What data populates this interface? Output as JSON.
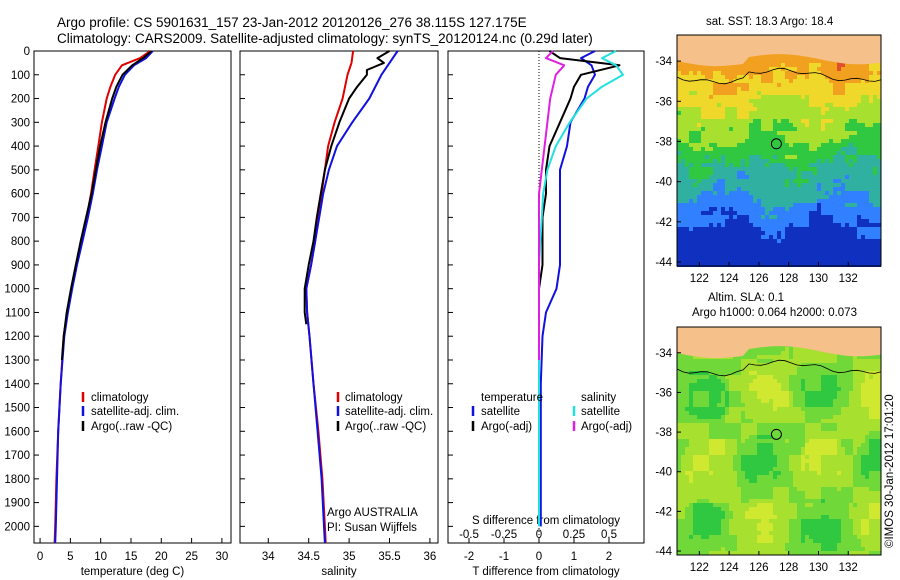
{
  "header": {
    "line1": "Argo profile: CS 5901631_157 23-Jan-2012 20120126_276 38.115S 127.175E",
    "line2": "Climatology: CARS2009. Satellite-adjusted climatology: synTS_20120124.nc (0.29d later)"
  },
  "credits": {
    "program": "Argo AUSTRALIA",
    "pi": "PI: Susan Wijffels",
    "imos": "©IMOS 30-Jan-2012 17:01:20"
  },
  "colors": {
    "climatology": "#e00000",
    "satellite": "#1010e0",
    "argo": "#000000",
    "cyan": "#20e0e0",
    "magenta": "#e020e0"
  },
  "chart_data": [
    {
      "type": "line",
      "title": "",
      "xlabel": "temperature (deg C)",
      "ylabel": "",
      "xlim": [
        -1,
        31.5
      ],
      "ylim": [
        2070,
        0
      ],
      "x_ticks": [
        0,
        5,
        10,
        15,
        20,
        25,
        30
      ],
      "y_ticks": [
        0,
        100,
        200,
        300,
        400,
        500,
        600,
        700,
        800,
        900,
        1000,
        1100,
        1200,
        1300,
        1400,
        1500,
        1600,
        1700,
        1800,
        1900,
        2000
      ],
      "legend": [
        "climatology",
        "satellite-adj. clim.",
        "Argo(..raw -QC)"
      ],
      "series": [
        {
          "name": "climatology",
          "color": "#e00000",
          "depth": [
            0,
            30,
            60,
            100,
            150,
            200,
            300,
            400,
            500,
            600,
            700,
            800,
            900,
            1000,
            1100,
            1200,
            1400,
            1600,
            1800,
            2000,
            2070
          ],
          "values": [
            18.2,
            16.5,
            13.5,
            12.4,
            11.6,
            11.0,
            10.2,
            9.6,
            9.0,
            8.4,
            7.7,
            6.9,
            6.0,
            5.2,
            4.5,
            3.9,
            3.4,
            3.0,
            2.7,
            2.5,
            2.4
          ]
        },
        {
          "name": "satellite-adj. clim.",
          "color": "#1010e0",
          "depth": [
            0,
            30,
            60,
            100,
            150,
            200,
            300,
            400,
            500,
            600,
            700,
            800,
            900,
            1000,
            1100,
            1200,
            1400,
            1600,
            1800,
            2000,
            2070
          ],
          "values": [
            18.6,
            17.5,
            15.5,
            14.0,
            13.0,
            12.3,
            11.0,
            10.2,
            9.4,
            8.7,
            7.9,
            7.0,
            6.1,
            5.3,
            4.6,
            4.0,
            3.4,
            3.0,
            2.8,
            2.6,
            2.5
          ]
        },
        {
          "name": "Argo(..raw -QC)",
          "color": "#000000",
          "depth": [
            0,
            30,
            60,
            100,
            150,
            200,
            300,
            400,
            500,
            600,
            700,
            800,
            900,
            1000,
            1100,
            1200,
            1300
          ],
          "values": [
            18.4,
            17.0,
            15.2,
            13.6,
            12.6,
            11.9,
            10.8,
            9.9,
            9.2,
            8.5,
            7.6,
            6.7,
            5.9,
            5.1,
            4.4,
            3.9,
            3.6
          ]
        }
      ]
    },
    {
      "type": "line",
      "title": "",
      "xlabel": "salinity",
      "ylabel": "",
      "xlim": [
        33.65,
        36.1
      ],
      "ylim": [
        2070,
        0
      ],
      "x_ticks": [
        34,
        34.5,
        35,
        35.5,
        36
      ],
      "legend": [
        "climatology",
        "satellite-adj. clim.",
        "Argo(..raw -QC)"
      ],
      "series": [
        {
          "name": "climatology",
          "color": "#e00000",
          "depth": [
            0,
            50,
            100,
            200,
            300,
            400,
            500,
            600,
            700,
            800,
            900,
            1000,
            1100,
            1200,
            1400,
            1600,
            1800,
            2000,
            2070
          ],
          "values": [
            35.05,
            35.03,
            34.98,
            34.92,
            34.82,
            34.74,
            34.7,
            34.66,
            34.62,
            34.58,
            34.53,
            34.47,
            34.48,
            34.51,
            34.56,
            34.62,
            34.67,
            34.7,
            34.71
          ]
        },
        {
          "name": "satellite-adj. clim.",
          "color": "#1010e0",
          "depth": [
            0,
            50,
            100,
            200,
            300,
            400,
            500,
            600,
            700,
            800,
            900,
            1000,
            1100,
            1200,
            1400,
            1600,
            1800,
            2000,
            2070
          ],
          "values": [
            35.6,
            35.5,
            35.4,
            35.25,
            35.04,
            34.85,
            34.75,
            34.68,
            34.63,
            34.58,
            34.53,
            34.47,
            34.48,
            34.51,
            34.56,
            34.61,
            34.66,
            34.69,
            34.7
          ]
        },
        {
          "name": "Argo(..raw -QC)",
          "color": "#000000",
          "depth": [
            0,
            30,
            50,
            80,
            100,
            150,
            200,
            300,
            400,
            500,
            600,
            700,
            800,
            900,
            1000,
            1100,
            1150
          ],
          "values": [
            35.5,
            35.35,
            35.43,
            35.22,
            35.22,
            35.1,
            35.0,
            34.88,
            34.78,
            34.7,
            34.65,
            34.6,
            34.56,
            34.5,
            34.45,
            34.45,
            34.47
          ]
        }
      ]
    },
    {
      "type": "line",
      "title": "",
      "xlabel": "T difference from climatology",
      "xlabel2": "S difference from climatology",
      "ylabel": "",
      "xlim": [
        -2.6,
        3.0
      ],
      "x2lim": [
        -0.65,
        0.75
      ],
      "ylim": [
        2070,
        0
      ],
      "x_ticks": [
        -2,
        -1,
        0,
        1,
        2
      ],
      "x2_ticks": [
        -0.5,
        -0.25,
        0,
        0.25,
        0.5
      ],
      "x2_tick_labels": [
        "-0.5",
        "-0.25",
        "0",
        "0.25",
        "0.5"
      ],
      "legend_temperature_title": "temperature",
      "legend_salinity_title": "salinity",
      "legend": [
        "satellite",
        "Argo(-adj)",
        "satellite",
        "Argo(-adj)"
      ],
      "series": [
        {
          "name": "satellite",
          "group": "temperature",
          "color": "#1010e0",
          "depth": [
            0,
            30,
            60,
            100,
            150,
            200,
            300,
            400,
            500,
            600,
            700,
            800,
            900,
            1000,
            1100,
            1200,
            1400,
            1600,
            1800,
            2000
          ],
          "values": [
            1.6,
            1.2,
            1.5,
            1.6,
            1.4,
            1.3,
            0.9,
            0.8,
            0.6,
            0.6,
            0.6,
            0.6,
            0.6,
            0.5,
            0.2,
            0.1,
            0.05,
            0.05,
            0.05,
            0.05
          ]
        },
        {
          "name": "Argo(-adj)",
          "group": "temperature",
          "color": "#000000",
          "depth": [
            0,
            30,
            60,
            100,
            150,
            200,
            300,
            400,
            500,
            600,
            700,
            800,
            900,
            1000,
            1100,
            1200,
            1300
          ],
          "values": [
            0.3,
            0.6,
            2.3,
            1.2,
            1.0,
            0.9,
            0.6,
            0.3,
            0.2,
            0.2,
            0.1,
            0.1,
            0.1,
            0.0,
            0.0,
            0.0,
            0.0
          ]
        },
        {
          "name": "satellite",
          "group": "salinity",
          "color": "#20e0e0",
          "depth": [
            0,
            30,
            60,
            100,
            150,
            200,
            300,
            400,
            500,
            600,
            700,
            800,
            900,
            1000,
            1100,
            1200,
            1400,
            1600,
            1800,
            2000
          ],
          "values": [
            0.55,
            0.45,
            0.55,
            0.6,
            0.45,
            0.34,
            0.22,
            0.12,
            0.06,
            0.03,
            0.02,
            0.01,
            0.0,
            0.0,
            0.0,
            0.0,
            0.0,
            0.0,
            0.0,
            0.0
          ]
        },
        {
          "name": "Argo(-adj)",
          "group": "salinity",
          "color": "#e020e0",
          "depth": [
            0,
            30,
            60,
            100,
            150,
            200,
            300,
            400,
            500,
            600,
            700,
            800,
            900,
            1000,
            1100,
            1200,
            1300
          ],
          "values": [
            0.1,
            0.05,
            0.18,
            0.12,
            0.1,
            0.08,
            0.06,
            0.04,
            0.02,
            0.0,
            0.0,
            0.0,
            0.0,
            0.0,
            0.0,
            0.0,
            0.0
          ]
        }
      ]
    },
    {
      "type": "heatmap",
      "title": "sat. SST: 18.3 Argo: 18.4",
      "xlim": [
        120.5,
        134.2
      ],
      "ylim": [
        -44.2,
        -32.7
      ],
      "x_ticks": [
        122,
        124,
        126,
        128,
        130,
        132
      ],
      "y_ticks": [
        -34,
        -36,
        -38,
        -40,
        -42,
        -44
      ],
      "argo_position": {
        "lon": 127.175,
        "lat": -38.115
      },
      "color_bands": [
        "#e0502a",
        "#f2a020",
        "#f0d82a",
        "#a8e030",
        "#30c840",
        "#30b0a0",
        "#3080ff",
        "#1030c0"
      ]
    },
    {
      "type": "heatmap",
      "title": "Altim. SLA: 0.1",
      "subtitle": "Argo h1000: 0.064 h2000: 0.073",
      "xlim": [
        120.5,
        134.2
      ],
      "ylim": [
        -44.2,
        -32.7
      ],
      "x_ticks": [
        122,
        124,
        126,
        128,
        130,
        132
      ],
      "y_ticks": [
        -34,
        -36,
        -38,
        -40,
        -42,
        -44
      ],
      "argo_position": {
        "lon": 127.175,
        "lat": -38.115
      },
      "color_bands": [
        "#30c840",
        "#70d838",
        "#a8e030",
        "#d0e830"
      ]
    }
  ]
}
